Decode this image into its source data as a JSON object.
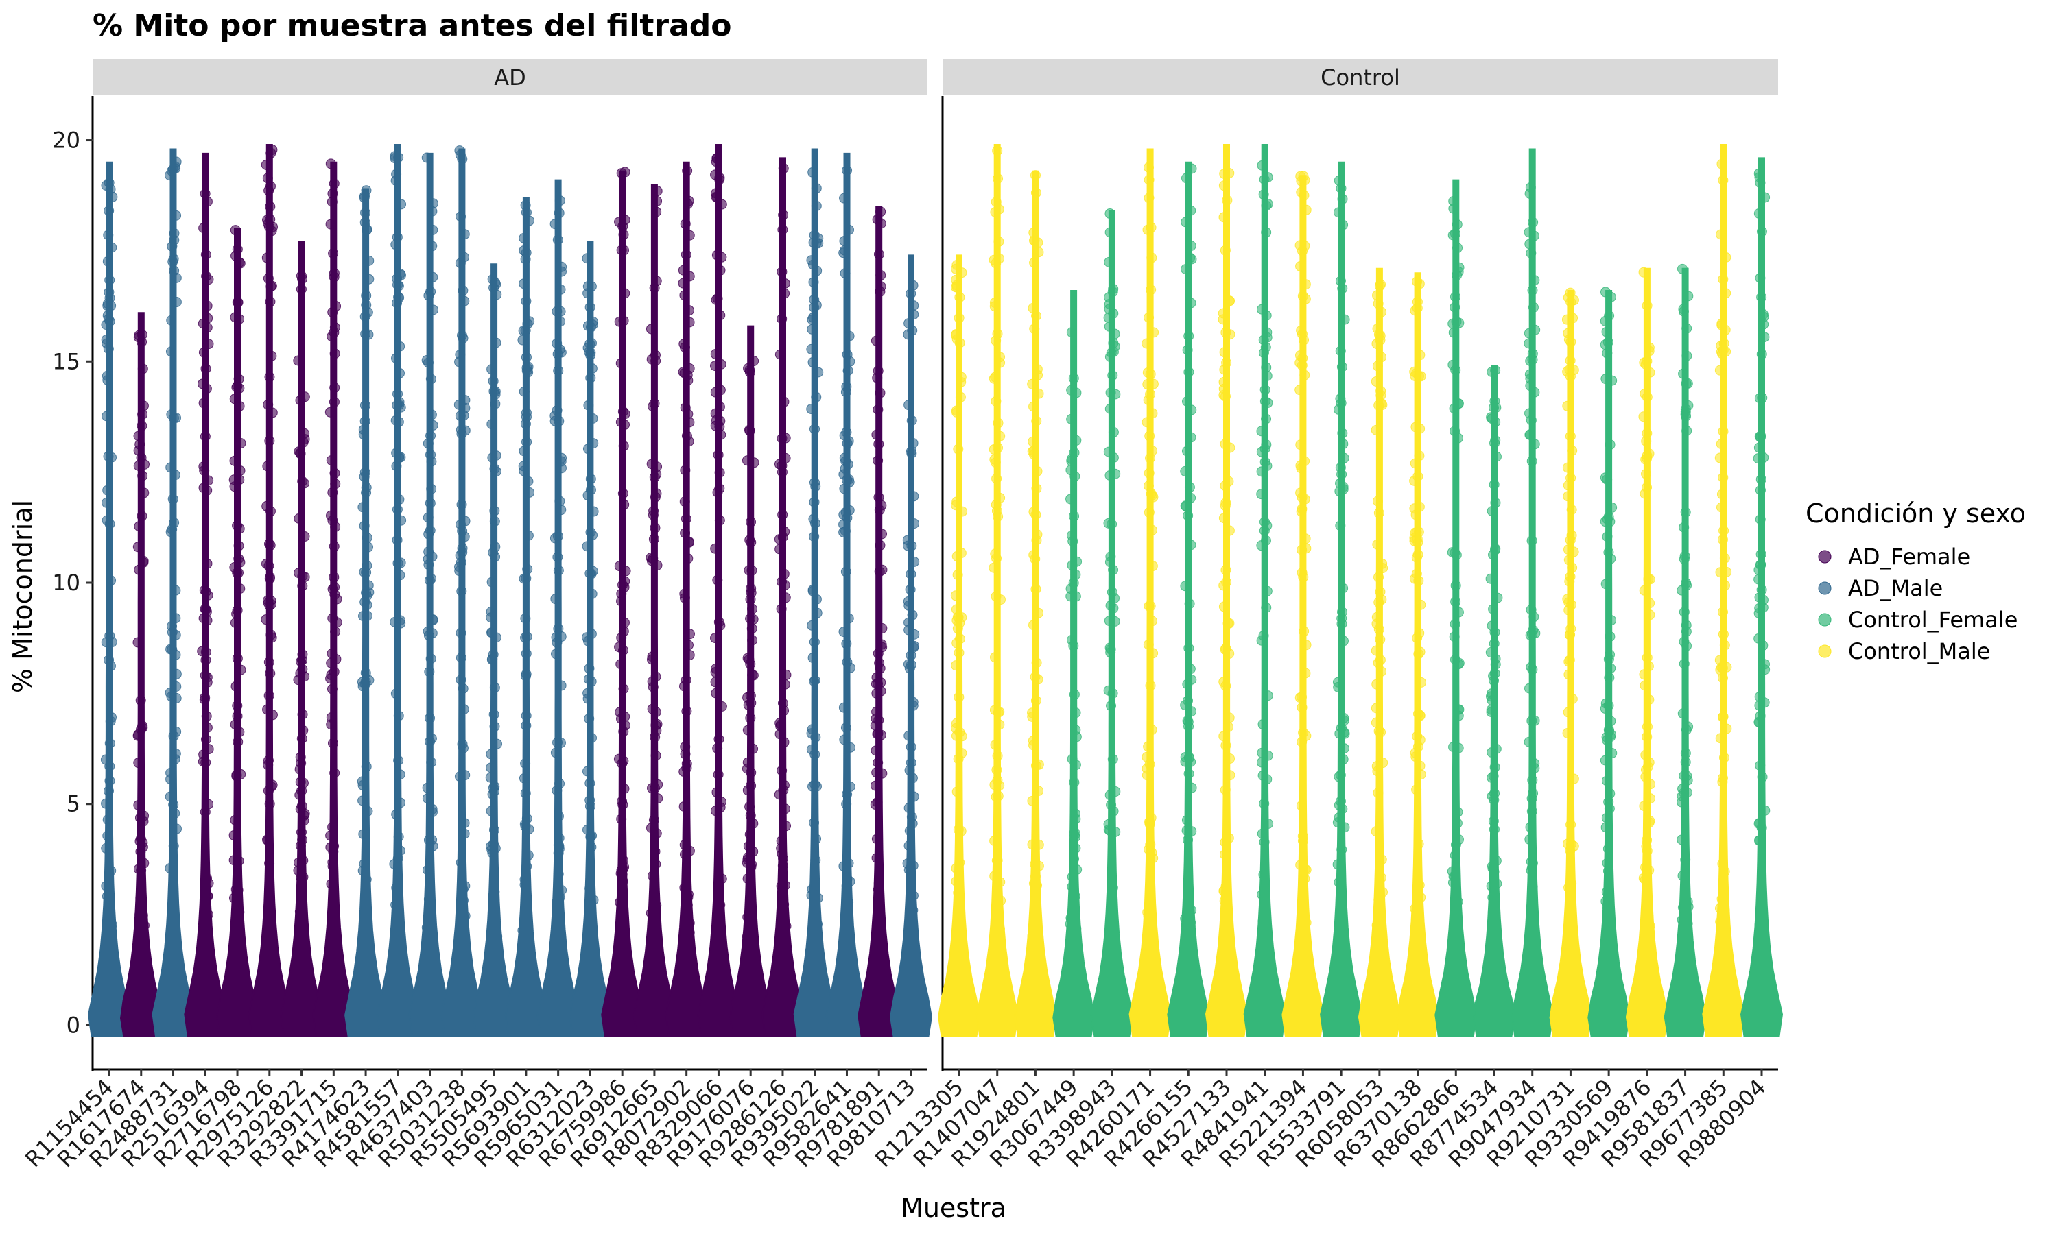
{
  "chart_data": {
    "type": "violin",
    "title": "% Mito por muestra antes del filtrado",
    "xlabel": "Muestra",
    "ylabel": "% Mitocondrial",
    "ylim": [
      -1,
      21
    ],
    "yticks": [
      0,
      5,
      10,
      15,
      20
    ],
    "legend": {
      "title": "Condición y sexo",
      "placement": "right",
      "entries": [
        {
          "name": "AD_Female",
          "color": "#440154"
        },
        {
          "name": "AD_Male",
          "color": "#31688E"
        },
        {
          "name": "Control_Female",
          "color": "#35B779"
        },
        {
          "name": "Control_Male",
          "color": "#FDE725"
        }
      ]
    },
    "panels": [
      {
        "label": "AD",
        "samples": [
          {
            "id": "R1154454",
            "group": "AD_Male",
            "max": 19.5
          },
          {
            "id": "R1617674",
            "group": "AD_Female",
            "max": 16.1
          },
          {
            "id": "R2488731",
            "group": "AD_Male",
            "max": 19.8
          },
          {
            "id": "R2516394",
            "group": "AD_Female",
            "max": 19.7
          },
          {
            "id": "R2716798",
            "group": "AD_Female",
            "max": 18.0
          },
          {
            "id": "R2975126",
            "group": "AD_Female",
            "max": 19.9
          },
          {
            "id": "R3292822",
            "group": "AD_Female",
            "max": 17.7
          },
          {
            "id": "R3391715",
            "group": "AD_Female",
            "max": 19.5
          },
          {
            "id": "R4174623",
            "group": "AD_Male",
            "max": 18.9
          },
          {
            "id": "R4581557",
            "group": "AD_Male",
            "max": 19.9
          },
          {
            "id": "R4637403",
            "group": "AD_Male",
            "max": 19.7
          },
          {
            "id": "R5031238",
            "group": "AD_Male",
            "max": 19.8
          },
          {
            "id": "R5505495",
            "group": "AD_Male",
            "max": 17.2
          },
          {
            "id": "R5693901",
            "group": "AD_Male",
            "max": 18.7
          },
          {
            "id": "R5965031",
            "group": "AD_Male",
            "max": 19.1
          },
          {
            "id": "R6312023",
            "group": "AD_Male",
            "max": 17.7
          },
          {
            "id": "R6759986",
            "group": "AD_Female",
            "max": 19.3
          },
          {
            "id": "R6912665",
            "group": "AD_Female",
            "max": 19.0
          },
          {
            "id": "R8072902",
            "group": "AD_Female",
            "max": 19.5
          },
          {
            "id": "R8329066",
            "group": "AD_Female",
            "max": 19.9
          },
          {
            "id": "R9176076",
            "group": "AD_Female",
            "max": 15.8
          },
          {
            "id": "R9286126",
            "group": "AD_Female",
            "max": 19.6
          },
          {
            "id": "R9395022",
            "group": "AD_Male",
            "max": 19.8
          },
          {
            "id": "R9582641",
            "group": "AD_Male",
            "max": 19.7
          },
          {
            "id": "R9781891",
            "group": "AD_Female",
            "max": 18.5
          },
          {
            "id": "R9810713",
            "group": "AD_Male",
            "max": 17.4
          }
        ]
      },
      {
        "label": "Control",
        "samples": [
          {
            "id": "R1213305",
            "group": "Control_Male",
            "max": 17.4
          },
          {
            "id": "R1407047",
            "group": "Control_Male",
            "max": 19.9
          },
          {
            "id": "R1924801",
            "group": "Control_Male",
            "max": 19.3
          },
          {
            "id": "R3067449",
            "group": "Control_Female",
            "max": 16.6
          },
          {
            "id": "R3398943",
            "group": "Control_Female",
            "max": 18.4
          },
          {
            "id": "R4260171",
            "group": "Control_Male",
            "max": 19.8
          },
          {
            "id": "R4266155",
            "group": "Control_Female",
            "max": 19.5
          },
          {
            "id": "R4527133",
            "group": "Control_Male",
            "max": 19.9
          },
          {
            "id": "R4841941",
            "group": "Control_Female",
            "max": 19.9
          },
          {
            "id": "R5221394",
            "group": "Control_Male",
            "max": 19.2
          },
          {
            "id": "R5533791",
            "group": "Control_Female",
            "max": 19.5
          },
          {
            "id": "R6058053",
            "group": "Control_Male",
            "max": 17.1
          },
          {
            "id": "R6370138",
            "group": "Control_Male",
            "max": 17.0
          },
          {
            "id": "R8662866",
            "group": "Control_Female",
            "max": 19.1
          },
          {
            "id": "R8774534",
            "group": "Control_Female",
            "max": 14.9
          },
          {
            "id": "R9047934",
            "group": "Control_Female",
            "max": 19.8
          },
          {
            "id": "R9210731",
            "group": "Control_Male",
            "max": 16.6
          },
          {
            "id": "R9330569",
            "group": "Control_Female",
            "max": 16.6
          },
          {
            "id": "R9419876",
            "group": "Control_Male",
            "max": 17.1
          },
          {
            "id": "R9581837",
            "group": "Control_Female",
            "max": 17.1
          },
          {
            "id": "R9677385",
            "group": "Control_Male",
            "max": 19.9
          },
          {
            "id": "R9880904",
            "group": "Control_Female",
            "max": 19.6
          }
        ]
      }
    ]
  }
}
